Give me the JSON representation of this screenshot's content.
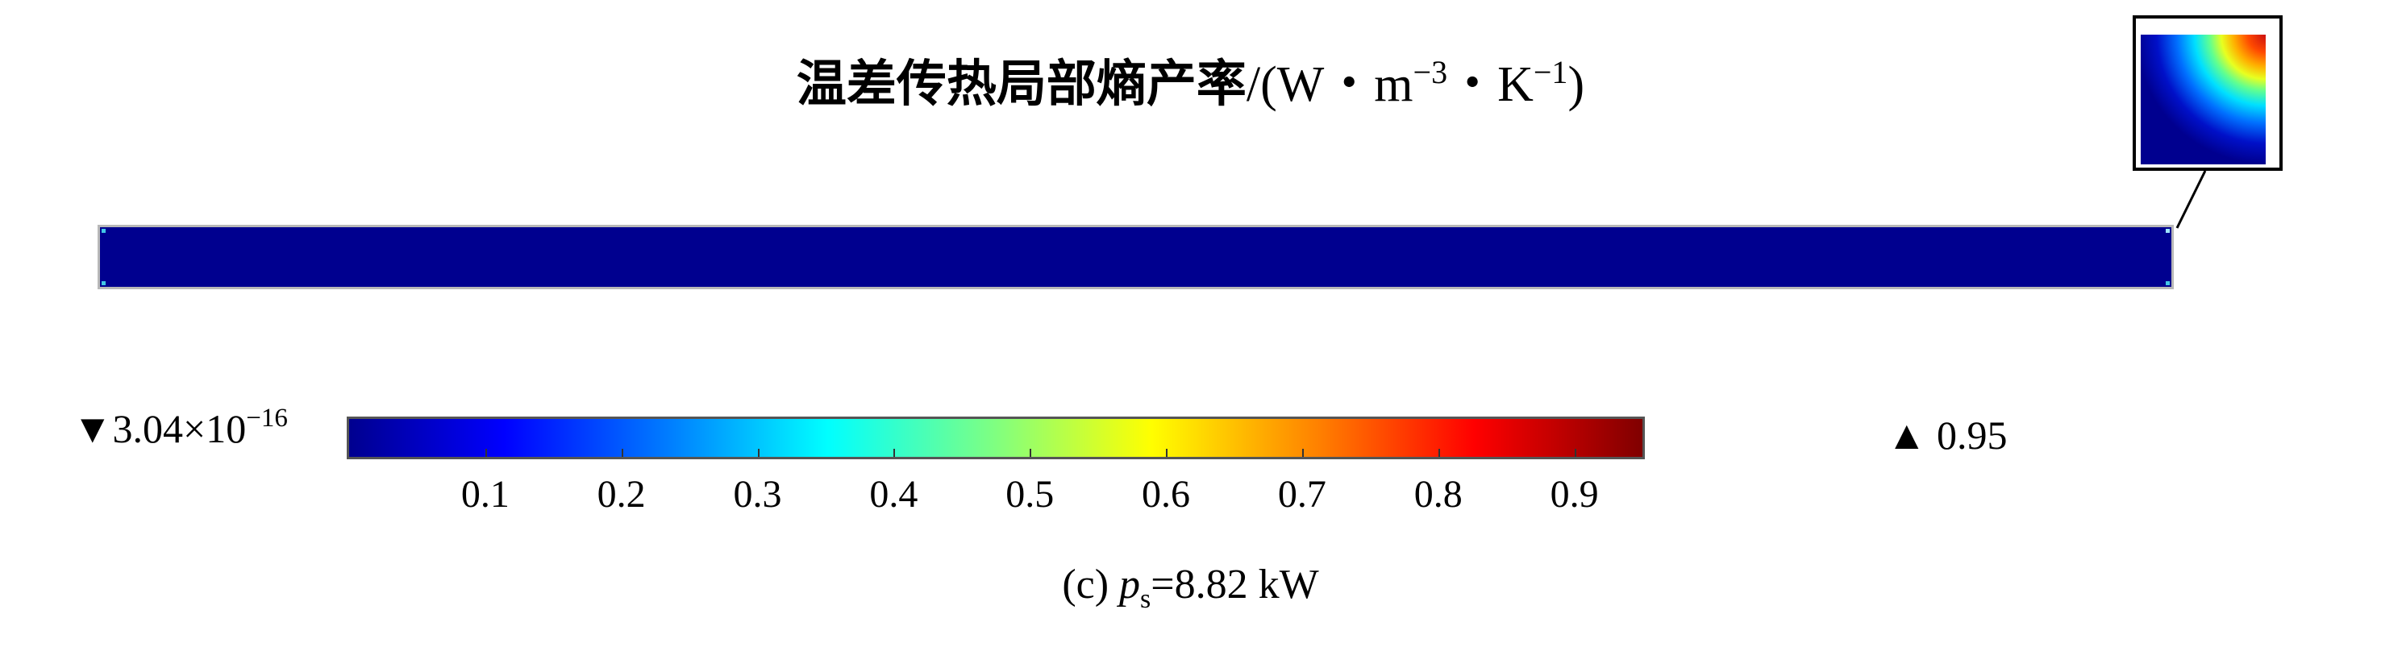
{
  "chart_data": {
    "type": "heatmap",
    "title_main": "温差传热局部熵产率",
    "title_unit_prefix": "/(W・m",
    "title_unit_exp1": "−3",
    "title_unit_mid": "・K",
    "title_unit_exp2": "−1",
    "title_unit_suffix": ")",
    "colorbar": {
      "colormap": "jet",
      "min_label_prefix": "▼",
      "min_mantissa": "3.04×10",
      "min_exponent": "−16",
      "max_label": "▲ 0.95",
      "min_value": 3.04e-16,
      "max_value": 0.95,
      "ticks": [
        "0.1",
        "0.2",
        "0.3",
        "0.4",
        "0.5",
        "0.6",
        "0.7",
        "0.8",
        "0.9"
      ]
    },
    "field_note": "uniformly near minimum along the slab; hot spot at upper-right corner shown in inset",
    "caption_prefix": "(c) ",
    "caption_var": "p",
    "caption_sub": "s",
    "caption_value": "=8.82 kW"
  },
  "colors": {
    "field_background": "#00008f",
    "hotspot": "#ff0000"
  }
}
